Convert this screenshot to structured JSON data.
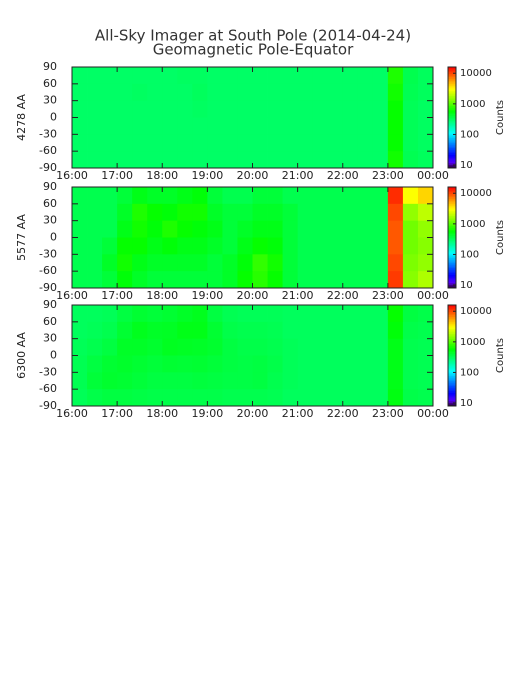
{
  "title": "All-Sky Imager at South Pole (2014-04-24)",
  "subtitle": "Geomagnetic Pole-Equator",
  "chart_data": [
    {
      "type": "heatmap",
      "ylabel": "4278 AA",
      "zlabel": "Counts",
      "log_z": true,
      "xlim": [
        16,
        24
      ],
      "xticks": [
        {
          "value": 16,
          "label": "16:00"
        },
        {
          "value": 17,
          "label": "17:00"
        },
        {
          "value": 18,
          "label": "18:00"
        },
        {
          "value": 19,
          "label": "19:00"
        },
        {
          "value": 20,
          "label": "20:00"
        },
        {
          "value": 21,
          "label": "21:00"
        },
        {
          "value": 22,
          "label": "22:00"
        },
        {
          "value": 23,
          "label": "23:00"
        },
        {
          "value": 24,
          "label": "00:00"
        }
      ],
      "ylim": [
        -90,
        90
      ],
      "yticks": [
        -90,
        -60,
        -30,
        0,
        30,
        60,
        90
      ],
      "zlim": [
        8,
        16000
      ],
      "zticks": [
        10,
        100,
        1000,
        10000
      ],
      "values": [
        [
          300,
          300,
          300,
          300,
          300,
          300,
          300,
          310,
          310,
          300,
          300,
          300,
          300,
          300,
          300,
          300,
          300,
          300,
          300,
          300,
          300,
          700,
          350,
          320
        ],
        [
          300,
          300,
          300,
          300,
          310,
          300,
          300,
          300,
          320,
          300,
          300,
          300,
          300,
          300,
          300,
          300,
          300,
          300,
          300,
          300,
          300,
          650,
          340,
          320
        ],
        [
          300,
          300,
          300,
          300,
          300,
          300,
          300,
          300,
          310,
          300,
          300,
          300,
          300,
          300,
          300,
          300,
          300,
          300,
          300,
          300,
          300,
          600,
          330,
          310
        ],
        [
          300,
          300,
          300,
          300,
          300,
          300,
          300,
          300,
          300,
          300,
          300,
          300,
          300,
          300,
          300,
          300,
          300,
          300,
          300,
          300,
          300,
          600,
          330,
          310
        ],
        [
          300,
          300,
          300,
          300,
          300,
          300,
          300,
          300,
          300,
          300,
          300,
          300,
          300,
          300,
          300,
          300,
          300,
          300,
          300,
          300,
          300,
          600,
          330,
          310
        ],
        [
          300,
          300,
          300,
          300,
          300,
          300,
          300,
          300,
          300,
          300,
          300,
          300,
          300,
          300,
          300,
          300,
          300,
          300,
          300,
          300,
          300,
          650,
          340,
          320
        ]
      ]
    },
    {
      "type": "heatmap",
      "ylabel": "5577 AA",
      "zlabel": "Counts",
      "log_z": true,
      "xlim": [
        16,
        24
      ],
      "xticks": [
        {
          "value": 16,
          "label": "16:00"
        },
        {
          "value": 17,
          "label": "17:00"
        },
        {
          "value": 18,
          "label": "18:00"
        },
        {
          "value": 19,
          "label": "19:00"
        },
        {
          "value": 20,
          "label": "20:00"
        },
        {
          "value": 21,
          "label": "21:00"
        },
        {
          "value": 22,
          "label": "22:00"
        },
        {
          "value": 23,
          "label": "23:00"
        },
        {
          "value": 24,
          "label": "00:00"
        }
      ],
      "ylim": [
        -90,
        90
      ],
      "yticks": [
        -90,
        -60,
        -30,
        0,
        30,
        60,
        90
      ],
      "zlim": [
        8,
        16000
      ],
      "zticks": [
        10,
        100,
        1000,
        10000
      ],
      "values": [
        [
          350,
          350,
          350,
          400,
          500,
          450,
          450,
          500,
          550,
          400,
          350,
          350,
          400,
          400,
          350,
          350,
          350,
          350,
          350,
          350,
          350,
          12000,
          3000,
          4000
        ],
        [
          350,
          350,
          350,
          450,
          700,
          600,
          550,
          650,
          650,
          450,
          400,
          400,
          450,
          450,
          400,
          350,
          350,
          350,
          350,
          350,
          350,
          10000,
          1500,
          2000
        ],
        [
          350,
          350,
          350,
          500,
          650,
          550,
          700,
          600,
          550,
          500,
          400,
          450,
          500,
          500,
          400,
          350,
          350,
          350,
          350,
          350,
          350,
          9000,
          1200,
          1500
        ],
        [
          350,
          350,
          400,
          600,
          600,
          500,
          550,
          500,
          500,
          450,
          400,
          500,
          600,
          550,
          400,
          350,
          350,
          350,
          350,
          350,
          350,
          9000,
          1200,
          1400
        ],
        [
          350,
          350,
          450,
          650,
          500,
          450,
          450,
          450,
          450,
          400,
          450,
          550,
          800,
          650,
          400,
          350,
          350,
          350,
          350,
          350,
          350,
          10000,
          1300,
          1500
        ],
        [
          350,
          350,
          400,
          550,
          450,
          400,
          400,
          400,
          400,
          400,
          450,
          600,
          750,
          600,
          400,
          350,
          350,
          350,
          350,
          350,
          350,
          11000,
          1400,
          1800
        ]
      ]
    },
    {
      "type": "heatmap",
      "ylabel": "6300 AA",
      "zlabel": "Counts",
      "log_z": true,
      "xlim": [
        16,
        24
      ],
      "xticks": [
        {
          "value": 16,
          "label": "16:00"
        },
        {
          "value": 17,
          "label": "17:00"
        },
        {
          "value": 18,
          "label": "18:00"
        },
        {
          "value": 19,
          "label": "19:00"
        },
        {
          "value": 20,
          "label": "20:00"
        },
        {
          "value": 21,
          "label": "21:00"
        },
        {
          "value": 22,
          "label": "22:00"
        },
        {
          "value": 23,
          "label": "23:00"
        },
        {
          "value": 24,
          "label": "00:00"
        }
      ],
      "ylim": [
        -90,
        90
      ],
      "yticks": [
        -90,
        -60,
        -30,
        0,
        30,
        60,
        90
      ],
      "zlim": [
        8,
        16000
      ],
      "zticks": [
        10,
        100,
        1000,
        10000
      ],
      "values": [
        [
          320,
          320,
          330,
          380,
          420,
          400,
          420,
          450,
          480,
          380,
          340,
          330,
          330,
          330,
          320,
          320,
          320,
          320,
          320,
          320,
          320,
          600,
          380,
          360
        ],
        [
          320,
          330,
          350,
          420,
          480,
          450,
          460,
          500,
          500,
          420,
          360,
          350,
          350,
          340,
          320,
          320,
          320,
          320,
          320,
          320,
          320,
          550,
          360,
          350
        ],
        [
          330,
          350,
          380,
          450,
          450,
          430,
          470,
          460,
          450,
          430,
          380,
          360,
          360,
          350,
          330,
          320,
          320,
          320,
          320,
          320,
          320,
          500,
          350,
          340
        ],
        [
          340,
          380,
          420,
          440,
          420,
          400,
          420,
          410,
          420,
          400,
          380,
          370,
          380,
          360,
          330,
          320,
          320,
          320,
          320,
          320,
          320,
          500,
          350,
          340
        ],
        [
          340,
          400,
          430,
          420,
          400,
          380,
          380,
          380,
          390,
          380,
          370,
          370,
          380,
          350,
          330,
          320,
          320,
          320,
          320,
          320,
          320,
          500,
          350,
          340
        ],
        [
          330,
          360,
          380,
          380,
          370,
          360,
          360,
          360,
          360,
          360,
          350,
          350,
          350,
          340,
          320,
          320,
          320,
          320,
          320,
          320,
          320,
          520,
          360,
          350
        ]
      ]
    }
  ]
}
